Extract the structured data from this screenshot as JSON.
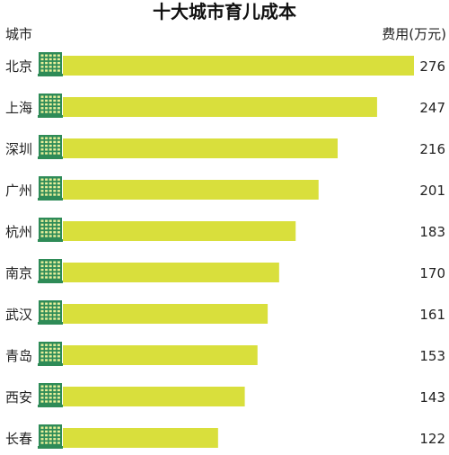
{
  "chart_data": {
    "type": "bar",
    "orientation": "horizontal",
    "title": "十大城市育儿成本",
    "category_header": "城市",
    "value_header": "费用(万元)",
    "categories": [
      "北京",
      "上海",
      "深圳",
      "广州",
      "杭州",
      "南京",
      "武汉",
      "青岛",
      "西安",
      "长春"
    ],
    "values": [
      276,
      247,
      216,
      201,
      183,
      170,
      161,
      153,
      143,
      122
    ],
    "data_labels": [
      "276",
      "247",
      "216",
      "201",
      "183",
      "170",
      "161",
      "153",
      "143",
      "122"
    ],
    "bar_color": "#d9df3c",
    "icon_color": "#2e8b57",
    "icon": "building-icon",
    "grid": false,
    "legend": "none"
  }
}
